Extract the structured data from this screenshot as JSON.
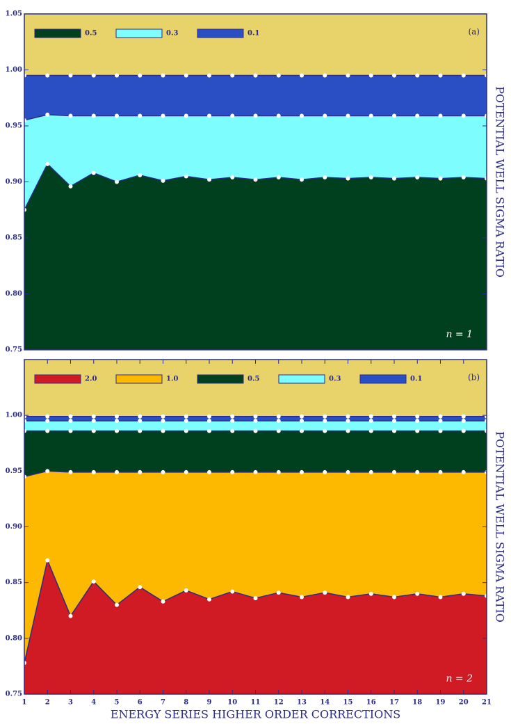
{
  "chart_data": [
    {
      "type": "area",
      "panel_label": "(a)",
      "annotation": "n = 1",
      "y_label": "POTENTIAL WELL SIGMA RATIO",
      "background": "#e8d26a",
      "x": [
        1,
        2,
        3,
        4,
        5,
        6,
        7,
        8,
        9,
        10,
        11,
        12,
        13,
        14,
        15,
        16,
        17,
        18,
        19,
        20,
        21
      ],
      "xlim": [
        1,
        21
      ],
      "ylim": [
        0.75,
        1.05
      ],
      "yticks": [
        {
          "value": 0.75,
          "label": "0.75"
        },
        {
          "value": 0.8,
          "label": "0.80"
        },
        {
          "value": 0.85,
          "label": "0.85"
        },
        {
          "value": 0.9,
          "label": "0.90"
        },
        {
          "value": 0.95,
          "label": "0.95"
        },
        {
          "value": 1.0,
          "label": "1.00"
        },
        {
          "value": 1.05,
          "label": "1.05"
        }
      ],
      "series": [
        {
          "name": "0.5",
          "color": "#00401e",
          "values": [
            0.875,
            0.916,
            0.896,
            0.908,
            0.9,
            0.906,
            0.901,
            0.905,
            0.902,
            0.904,
            0.902,
            0.904,
            0.902,
            0.904,
            0.903,
            0.904,
            0.903,
            0.904,
            0.903,
            0.904,
            0.903
          ]
        },
        {
          "name": "0.3",
          "color": "#7dfdfe",
          "values": [
            0.955,
            0.96,
            0.959,
            0.959,
            0.959,
            0.959,
            0.959,
            0.959,
            0.959,
            0.959,
            0.959,
            0.959,
            0.959,
            0.959,
            0.959,
            0.959,
            0.959,
            0.959,
            0.959,
            0.959,
            0.959
          ]
        },
        {
          "name": "0.1",
          "color": "#2a4fc4",
          "values": [
            0.995,
            0.995,
            0.995,
            0.995,
            0.995,
            0.995,
            0.995,
            0.995,
            0.995,
            0.995,
            0.995,
            0.995,
            0.995,
            0.995,
            0.995,
            0.995,
            0.995,
            0.995,
            0.995,
            0.995,
            0.995
          ]
        }
      ]
    },
    {
      "type": "area",
      "panel_label": "(b)",
      "annotation": "n = 2",
      "y_label": "POTENTIAL WELL SIGMA RATIO",
      "x_label": "ENERGY SERIES HIGHER ORDER CORRECTIONS",
      "background": "#e8d26a",
      "x": [
        1,
        2,
        3,
        4,
        5,
        6,
        7,
        8,
        9,
        10,
        11,
        12,
        13,
        14,
        15,
        16,
        17,
        18,
        19,
        20,
        21
      ],
      "xlim": [
        1,
        21
      ],
      "xticks": [
        1,
        2,
        3,
        4,
        5,
        6,
        7,
        8,
        9,
        10,
        11,
        12,
        13,
        14,
        15,
        16,
        17,
        18,
        19,
        20,
        21
      ],
      "ylim": [
        0.75,
        1.05
      ],
      "yticks": [
        {
          "value": 0.75,
          "label": "0.75"
        },
        {
          "value": 0.8,
          "label": "0.80"
        },
        {
          "value": 0.85,
          "label": "0.85"
        },
        {
          "value": 0.9,
          "label": "0.90"
        },
        {
          "value": 0.95,
          "label": "0.95"
        },
        {
          "value": 1.0,
          "label": "1.00"
        }
      ],
      "series": [
        {
          "name": "2.0",
          "color": "#d01a24",
          "values": [
            0.778,
            0.87,
            0.82,
            0.851,
            0.83,
            0.846,
            0.833,
            0.843,
            0.835,
            0.842,
            0.836,
            0.841,
            0.837,
            0.841,
            0.837,
            0.84,
            0.837,
            0.84,
            0.837,
            0.84,
            0.838
          ]
        },
        {
          "name": "1.0",
          "color": "#fdb900",
          "values": [
            0.945,
            0.95,
            0.949,
            0.949,
            0.949,
            0.949,
            0.949,
            0.949,
            0.949,
            0.949,
            0.949,
            0.949,
            0.949,
            0.949,
            0.949,
            0.949,
            0.949,
            0.949,
            0.949,
            0.949,
            0.949
          ]
        },
        {
          "name": "0.5",
          "color": "#00401e",
          "values": [
            0.986,
            0.986,
            0.986,
            0.986,
            0.986,
            0.986,
            0.986,
            0.986,
            0.986,
            0.986,
            0.986,
            0.986,
            0.986,
            0.986,
            0.986,
            0.986,
            0.986,
            0.986,
            0.986,
            0.986,
            0.986
          ]
        },
        {
          "name": "0.3",
          "color": "#7dfdfe",
          "values": [
            0.995,
            0.995,
            0.995,
            0.995,
            0.995,
            0.995,
            0.995,
            0.995,
            0.995,
            0.995,
            0.995,
            0.995,
            0.995,
            0.995,
            0.995,
            0.995,
            0.995,
            0.995,
            0.995,
            0.995,
            0.995
          ]
        },
        {
          "name": "0.1",
          "color": "#2a4fc4",
          "values": [
            0.999,
            0.999,
            0.999,
            0.999,
            0.999,
            0.999,
            0.999,
            0.999,
            0.999,
            0.999,
            0.999,
            0.999,
            0.999,
            0.999,
            0.999,
            0.999,
            0.999,
            0.999,
            0.999,
            0.999,
            0.999
          ]
        }
      ]
    }
  ]
}
